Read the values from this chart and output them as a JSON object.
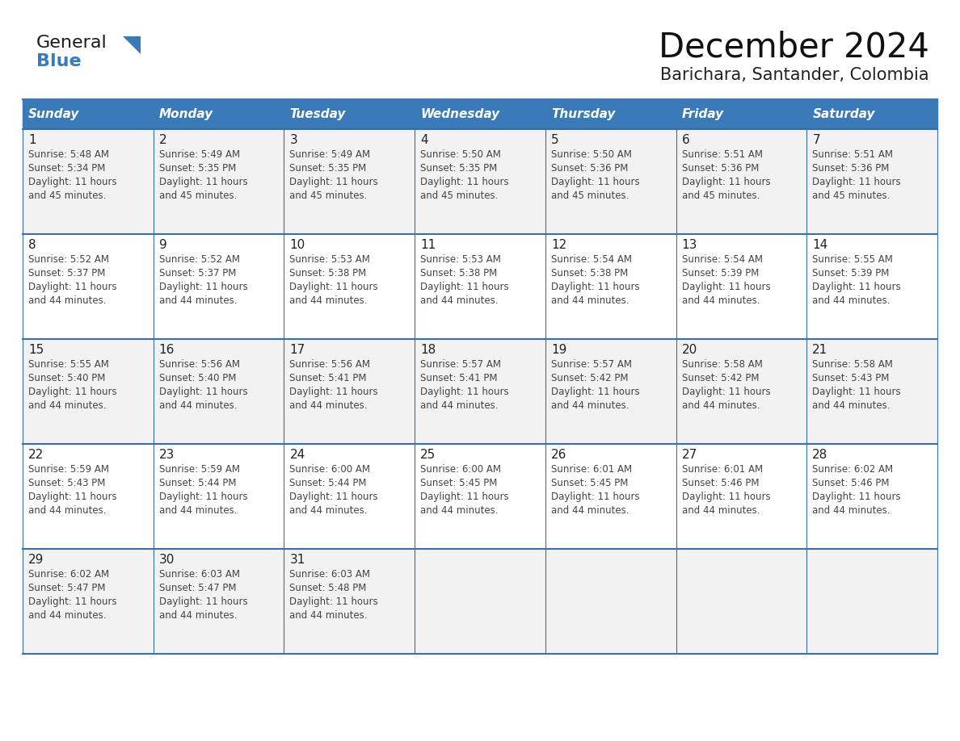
{
  "title": "December 2024",
  "subtitle": "Barichara, Santander, Colombia",
  "header_bg": "#3A7AB8",
  "header_text_color": "#FFFFFF",
  "weekdays": [
    "Sunday",
    "Monday",
    "Tuesday",
    "Wednesday",
    "Thursday",
    "Friday",
    "Saturday"
  ],
  "cell_border_color": "#3A6EA8",
  "day_number_color": "#222222",
  "day_text_color": "#444444",
  "title_color": "#111111",
  "subtitle_color": "#222222",
  "logo_general_color": "#1a1a1a",
  "logo_blue_color": "#3A7AB8",
  "row_colors": [
    "#F2F2F2",
    "#FFFFFF",
    "#F2F2F2",
    "#FFFFFF",
    "#F2F2F2"
  ],
  "calendar_data": [
    [
      {
        "day": 1,
        "sunrise": "5:48 AM",
        "sunset": "5:34 PM",
        "daylight": "11 hours and 45 minutes."
      },
      {
        "day": 2,
        "sunrise": "5:49 AM",
        "sunset": "5:35 PM",
        "daylight": "11 hours and 45 minutes."
      },
      {
        "day": 3,
        "sunrise": "5:49 AM",
        "sunset": "5:35 PM",
        "daylight": "11 hours and 45 minutes."
      },
      {
        "day": 4,
        "sunrise": "5:50 AM",
        "sunset": "5:35 PM",
        "daylight": "11 hours and 45 minutes."
      },
      {
        "day": 5,
        "sunrise": "5:50 AM",
        "sunset": "5:36 PM",
        "daylight": "11 hours and 45 minutes."
      },
      {
        "day": 6,
        "sunrise": "5:51 AM",
        "sunset": "5:36 PM",
        "daylight": "11 hours and 45 minutes."
      },
      {
        "day": 7,
        "sunrise": "5:51 AM",
        "sunset": "5:36 PM",
        "daylight": "11 hours and 45 minutes."
      }
    ],
    [
      {
        "day": 8,
        "sunrise": "5:52 AM",
        "sunset": "5:37 PM",
        "daylight": "11 hours and 44 minutes."
      },
      {
        "day": 9,
        "sunrise": "5:52 AM",
        "sunset": "5:37 PM",
        "daylight": "11 hours and 44 minutes."
      },
      {
        "day": 10,
        "sunrise": "5:53 AM",
        "sunset": "5:38 PM",
        "daylight": "11 hours and 44 minutes."
      },
      {
        "day": 11,
        "sunrise": "5:53 AM",
        "sunset": "5:38 PM",
        "daylight": "11 hours and 44 minutes."
      },
      {
        "day": 12,
        "sunrise": "5:54 AM",
        "sunset": "5:38 PM",
        "daylight": "11 hours and 44 minutes."
      },
      {
        "day": 13,
        "sunrise": "5:54 AM",
        "sunset": "5:39 PM",
        "daylight": "11 hours and 44 minutes."
      },
      {
        "day": 14,
        "sunrise": "5:55 AM",
        "sunset": "5:39 PM",
        "daylight": "11 hours and 44 minutes."
      }
    ],
    [
      {
        "day": 15,
        "sunrise": "5:55 AM",
        "sunset": "5:40 PM",
        "daylight": "11 hours and 44 minutes."
      },
      {
        "day": 16,
        "sunrise": "5:56 AM",
        "sunset": "5:40 PM",
        "daylight": "11 hours and 44 minutes."
      },
      {
        "day": 17,
        "sunrise": "5:56 AM",
        "sunset": "5:41 PM",
        "daylight": "11 hours and 44 minutes."
      },
      {
        "day": 18,
        "sunrise": "5:57 AM",
        "sunset": "5:41 PM",
        "daylight": "11 hours and 44 minutes."
      },
      {
        "day": 19,
        "sunrise": "5:57 AM",
        "sunset": "5:42 PM",
        "daylight": "11 hours and 44 minutes."
      },
      {
        "day": 20,
        "sunrise": "5:58 AM",
        "sunset": "5:42 PM",
        "daylight": "11 hours and 44 minutes."
      },
      {
        "day": 21,
        "sunrise": "5:58 AM",
        "sunset": "5:43 PM",
        "daylight": "11 hours and 44 minutes."
      }
    ],
    [
      {
        "day": 22,
        "sunrise": "5:59 AM",
        "sunset": "5:43 PM",
        "daylight": "11 hours and 44 minutes."
      },
      {
        "day": 23,
        "sunrise": "5:59 AM",
        "sunset": "5:44 PM",
        "daylight": "11 hours and 44 minutes."
      },
      {
        "day": 24,
        "sunrise": "6:00 AM",
        "sunset": "5:44 PM",
        "daylight": "11 hours and 44 minutes."
      },
      {
        "day": 25,
        "sunrise": "6:00 AM",
        "sunset": "5:45 PM",
        "daylight": "11 hours and 44 minutes."
      },
      {
        "day": 26,
        "sunrise": "6:01 AM",
        "sunset": "5:45 PM",
        "daylight": "11 hours and 44 minutes."
      },
      {
        "day": 27,
        "sunrise": "6:01 AM",
        "sunset": "5:46 PM",
        "daylight": "11 hours and 44 minutes."
      },
      {
        "day": 28,
        "sunrise": "6:02 AM",
        "sunset": "5:46 PM",
        "daylight": "11 hours and 44 minutes."
      }
    ],
    [
      {
        "day": 29,
        "sunrise": "6:02 AM",
        "sunset": "5:47 PM",
        "daylight": "11 hours and 44 minutes."
      },
      {
        "day": 30,
        "sunrise": "6:03 AM",
        "sunset": "5:47 PM",
        "daylight": "11 hours and 44 minutes."
      },
      {
        "day": 31,
        "sunrise": "6:03 AM",
        "sunset": "5:48 PM",
        "daylight": "11 hours and 44 minutes."
      },
      null,
      null,
      null,
      null
    ]
  ]
}
